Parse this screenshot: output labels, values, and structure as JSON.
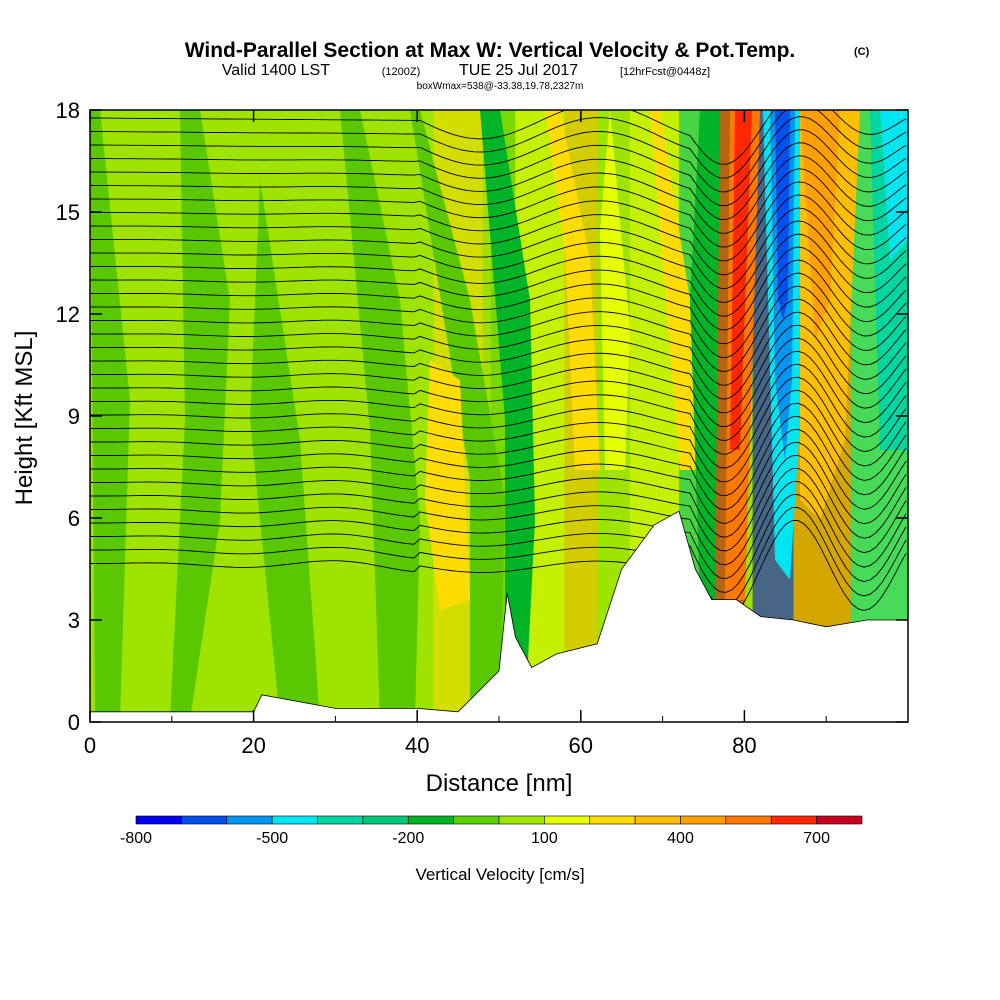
{
  "chart_data": {
    "type": "heatmap",
    "title": "Wind-Parallel Section at Max W: Vertical Velocity & Pot.Temp.",
    "copyright": "(C)",
    "subtitle_main_left": "Valid 1400 LST",
    "subtitle_utc": "(1200Z)",
    "subtitle_main_right": "TUE 25 Jul 2017",
    "subtitle_fcst": "[12hrFcst@0448z]",
    "subtitle2": "boxWmax=538@-33.38,19.78,2327m",
    "xlabel": "Distance [nm]",
    "ylabel": "Height [Kft MSL]",
    "xlim": [
      0,
      100
    ],
    "ylim": [
      0,
      18
    ],
    "xticks": [
      0,
      20,
      40,
      60,
      80
    ],
    "yticks": [
      0,
      3,
      6,
      9,
      12,
      15,
      18
    ],
    "colorbar": {
      "label": "Vertical Velocity [cm/s]",
      "ticks": [
        "-800",
        "-500",
        "-200",
        "100",
        "400",
        "700"
      ],
      "tick_values": [
        -800,
        -500,
        -200,
        100,
        400,
        700
      ],
      "bounds": [
        -800,
        -700,
        -600,
        -500,
        -400,
        -300,
        -200,
        -100,
        0,
        100,
        200,
        300,
        400,
        500,
        600,
        700,
        800
      ],
      "colors": [
        "#0000f0",
        "#0050f0",
        "#0096f0",
        "#00e6f0",
        "#00d6a0",
        "#00c878",
        "#00b428",
        "#5ad200",
        "#a0e600",
        "#e6ff00",
        "#ffdc00",
        "#ffbe00",
        "#ffa000",
        "#ff7800",
        "#ff2800",
        "#c80020"
      ]
    },
    "velocity_bands": [
      {
        "x0": 0,
        "x1": 43,
        "value": 0
      },
      {
        "x0": 42,
        "x1": 48,
        "value": 250
      },
      {
        "x0": 49,
        "x1": 52,
        "value": -100
      },
      {
        "x0": 52,
        "x1": 58,
        "value": 120
      },
      {
        "x0": 58,
        "x1": 62,
        "value": 300
      },
      {
        "x0": 62,
        "x1": 66,
        "value": 50
      },
      {
        "x0": 66,
        "x1": 72,
        "value": 150
      },
      {
        "x0": 72,
        "x1": 76,
        "value": -250
      },
      {
        "x0": 76,
        "x1": 80,
        "value": 750
      },
      {
        "x0": 81,
        "x1": 86,
        "value": -750
      },
      {
        "x0": 86,
        "x1": 93,
        "value": 500
      },
      {
        "x0": 93,
        "x1": 100,
        "value": -350
      }
    ],
    "terrain_profile_kft": [
      [
        0,
        0.3
      ],
      [
        10,
        0.3
      ],
      [
        20,
        0.3
      ],
      [
        21,
        0.8
      ],
      [
        30,
        0.4
      ],
      [
        40,
        0.4
      ],
      [
        45,
        0.3
      ],
      [
        50,
        1.5
      ],
      [
        51,
        3.8
      ],
      [
        52,
        2.5
      ],
      [
        54,
        1.6
      ],
      [
        57,
        2.0
      ],
      [
        62,
        2.3
      ],
      [
        65,
        4.5
      ],
      [
        69,
        5.8
      ],
      [
        72,
        6.2
      ],
      [
        74,
        4.5
      ],
      [
        76,
        3.6
      ],
      [
        79,
        3.6
      ],
      [
        82,
        3.1
      ],
      [
        86,
        3.0
      ],
      [
        90,
        2.8
      ],
      [
        95,
        3.0
      ],
      [
        100,
        3.0
      ]
    ]
  }
}
